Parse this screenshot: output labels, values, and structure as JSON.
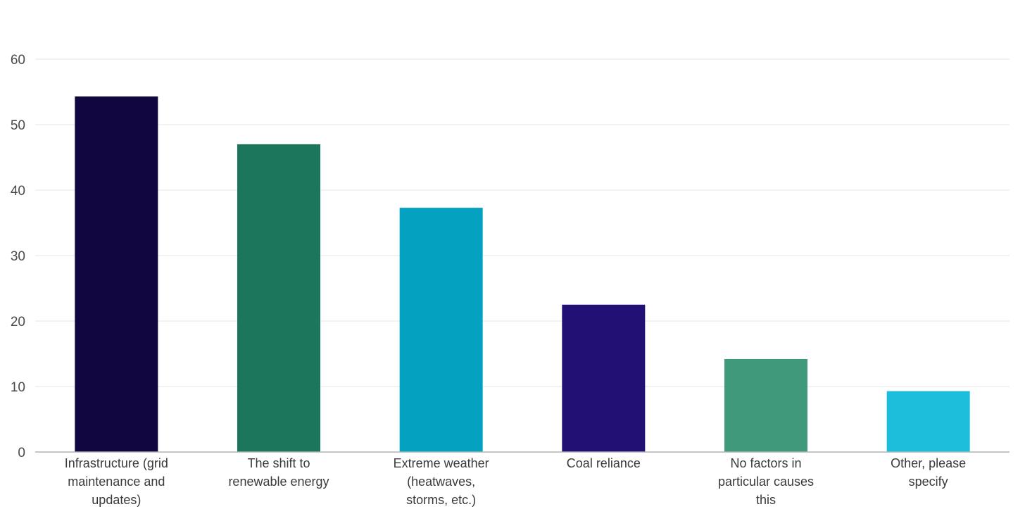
{
  "chart_data": {
    "type": "bar",
    "title": "",
    "xlabel": "",
    "ylabel": "",
    "ylim": [
      0,
      60
    ],
    "yticks": [
      0,
      10,
      20,
      30,
      40,
      50,
      60
    ],
    "grid": true,
    "legend": "none",
    "categories": [
      [
        "Infrastructure (grid",
        "maintenance and",
        "updates)"
      ],
      [
        "The shift to",
        "renewable energy"
      ],
      [
        "Extreme weather",
        "(heatwaves,",
        "storms, etc.)"
      ],
      [
        "Coal reliance"
      ],
      [
        "No factors in",
        "particular causes",
        "this"
      ],
      [
        "Other, please",
        "specify"
      ]
    ],
    "values": [
      54.3,
      47.0,
      37.3,
      22.5,
      14.2,
      9.3
    ],
    "colors": [
      "#120640",
      "#1c765c",
      "#04a2c0",
      "#231075",
      "#41997b",
      "#1cbedc"
    ]
  }
}
